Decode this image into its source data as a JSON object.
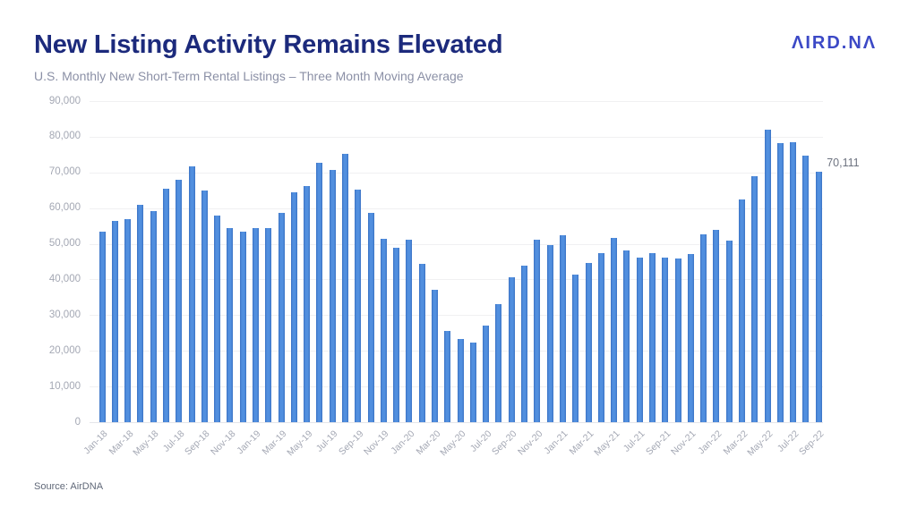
{
  "header": {
    "title": "New Listing Activity Remains Elevated",
    "subtitle": "U.S. Monthly New Short-Term Rental Listings – Three Month Moving Average",
    "logo_text": "AIRDNA",
    "logo_display": "ΛIRD.ΝΛ"
  },
  "footer": {
    "source": "Source: AirDNA"
  },
  "colors": {
    "title": "#1c2a7c",
    "subtitle": "#8b90a6",
    "logo": "#3c49c6",
    "bar": "#4687d7",
    "bar_edge": "#3b72c3",
    "gridline": "#f0f0f2",
    "axis_label": "#a4a8b4",
    "annotation": "#6d7380",
    "source": "#606878",
    "background": "#ffffff"
  },
  "chart_data": {
    "type": "bar",
    "title": "New Listing Activity Remains Elevated",
    "subtitle": "U.S. Monthly New Short-Term Rental Listings – Three Month Moving Average",
    "xlabel": "",
    "ylabel": "",
    "ylim": [
      0,
      90000
    ],
    "y_tick_step": 10000,
    "y_tick_labels": [
      "0",
      "10,000",
      "20,000",
      "30,000",
      "40,000",
      "50,000",
      "60,000",
      "70,000",
      "80,000",
      "90,000"
    ],
    "grid": true,
    "legend": false,
    "x_ticks_shown_every": 2,
    "x": [
      "Jan-18",
      "Feb-18",
      "Mar-18",
      "Apr-18",
      "May-18",
      "Jun-18",
      "Jul-18",
      "Aug-18",
      "Sep-18",
      "Oct-18",
      "Nov-18",
      "Dec-18",
      "Jan-19",
      "Feb-19",
      "Mar-19",
      "Apr-19",
      "May-19",
      "Jun-19",
      "Jul-19",
      "Aug-19",
      "Sep-19",
      "Oct-19",
      "Nov-19",
      "Dec-19",
      "Jan-20",
      "Feb-20",
      "Mar-20",
      "Apr-20",
      "May-20",
      "Jun-20",
      "Jul-20",
      "Aug-20",
      "Sep-20",
      "Oct-20",
      "Nov-20",
      "Dec-20",
      "Jan-21",
      "Feb-21",
      "Mar-21",
      "Apr-21",
      "May-21",
      "Jun-21",
      "Jul-21",
      "Aug-21",
      "Sep-21",
      "Oct-21",
      "Nov-21",
      "Dec-21",
      "Jan-22",
      "Feb-22",
      "Mar-22",
      "Apr-22",
      "May-22",
      "Jun-22",
      "Jul-22",
      "Aug-22",
      "Sep-22"
    ],
    "values": [
      53400,
      56400,
      57000,
      60800,
      59200,
      65500,
      68000,
      71600,
      64900,
      57900,
      54300,
      53400,
      54500,
      54500,
      58700,
      64400,
      66100,
      72600,
      70800,
      75100,
      65100,
      58700,
      51400,
      49000,
      51200,
      44300,
      37000,
      25600,
      23400,
      22300,
      27200,
      33200,
      40500,
      43800,
      51100,
      49700,
      52400,
      41300,
      44700,
      47300,
      51600,
      48100,
      46200,
      47500,
      46100,
      46000,
      47100,
      52600,
      53800,
      50900,
      62400,
      69000,
      82000,
      78100,
      78400,
      74700,
      70111
    ],
    "annotation": {
      "text": "70,111",
      "x_index": 56
    }
  }
}
